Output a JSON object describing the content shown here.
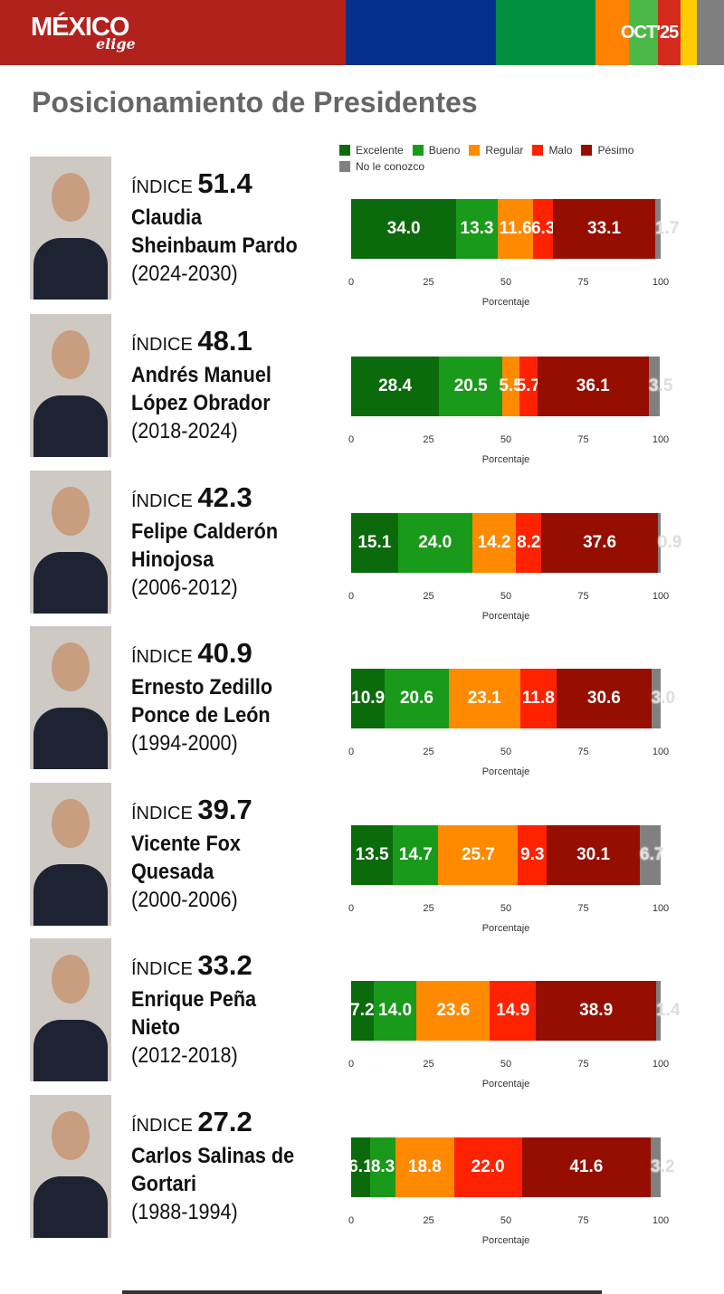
{
  "header": {
    "brand": "MÉXICO",
    "brand_sub": "elige",
    "date": "OCT'25",
    "stripe_colors": [
      "#b2221d",
      "#05308b",
      "#009040",
      "#ff8200",
      "#4cb848",
      "#d52b1e",
      "#ffcc00",
      "#7f7f7f"
    ]
  },
  "title": "Posicionamiento de Presidentes",
  "legend": [
    {
      "label": "Excelente",
      "color": "#0b6a0b"
    },
    {
      "label": "Bueno",
      "color": "#1a9a1a"
    },
    {
      "label": "Regular",
      "color": "#ff8a00"
    },
    {
      "label": "Malo",
      "color": "#ff2200"
    },
    {
      "label": "Pésimo",
      "color": "#960e00"
    },
    {
      "label": "No le conozco",
      "color": "#808080"
    }
  ],
  "index_label": "ÍNDICE",
  "chart_data": {
    "type": "stacked-bar-horizontal",
    "xlabel": "Porcentaje",
    "xlim": [
      0,
      100
    ],
    "xticks": [
      "0",
      "25",
      "50",
      "75",
      "100"
    ],
    "categories": [
      "Excelente",
      "Bueno",
      "Regular",
      "Malo",
      "Pésimo",
      "No le conozco"
    ],
    "presidents": [
      {
        "index": "51.4",
        "name1": "Claudia",
        "name2": "Sheinbaum Pardo",
        "years": "(2024-2030)",
        "values": [
          34.0,
          13.3,
          11.6,
          6.3,
          33.1,
          1.7
        ]
      },
      {
        "index": "48.1",
        "name1": "Andrés Manuel",
        "name2": "López Obrador",
        "years": "(2018-2024)",
        "values": [
          28.4,
          20.5,
          5.5,
          5.7,
          36.1,
          3.5
        ]
      },
      {
        "index": "42.3",
        "name1": "Felipe Calderón",
        "name2": "Hinojosa",
        "years": "(2006-2012)",
        "values": [
          15.1,
          24.0,
          14.2,
          8.2,
          37.6,
          0.9
        ]
      },
      {
        "index": "40.9",
        "name1": "Ernesto Zedillo",
        "name2": "Ponce de León",
        "years": "(1994-2000)",
        "values": [
          10.9,
          20.6,
          23.1,
          11.8,
          30.6,
          3.0
        ]
      },
      {
        "index": "39.7",
        "name1": "Vicente Fox",
        "name2": "Quesada",
        "years": "(2000-2006)",
        "values": [
          13.5,
          14.7,
          25.7,
          9.3,
          30.1,
          6.7
        ]
      },
      {
        "index": "33.2",
        "name1": "Enrique Peña",
        "name2": "Nieto",
        "years": "(2012-2018)",
        "values": [
          7.2,
          14.0,
          23.6,
          14.9,
          38.9,
          1.4
        ]
      },
      {
        "index": "27.2",
        "name1": "Carlos Salinas de",
        "name2": "Gortari",
        "years": "(1988-1994)",
        "values": [
          6.1,
          8.3,
          18.8,
          22.0,
          41.6,
          3.2
        ]
      }
    ]
  }
}
